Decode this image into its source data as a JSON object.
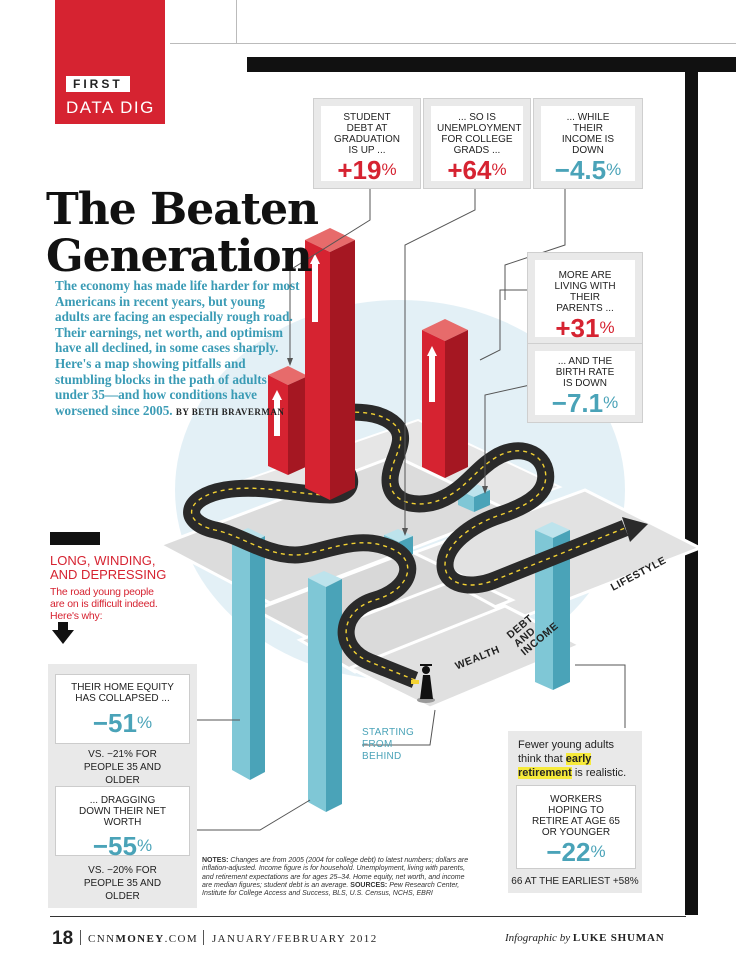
{
  "section": {
    "first": "FIRST",
    "data_dig": "DATA DIG"
  },
  "title": {
    "line1": "The Beaten",
    "line2": "Generation"
  },
  "intro": {
    "text": "The economy has made life harder for most Americans in recent years, but young adults are facing an especially rough road. Their earnings, net worth, and optimism have all declined, in some cases sharply. Here's a map showing pitfalls and stumbling blocks in the path of adults under 35—and how conditions have worsened since 2005.",
    "byline": "BY BETH BRAVERMAN"
  },
  "stats_top": [
    {
      "caption": "STUDENT DEBT AT GRADUATION IS UP ...",
      "value": "+19",
      "unit": "%",
      "color": "#d62331"
    },
    {
      "caption": "... SO IS UNEMPLOYMENT FOR COLLEGE GRADS ...",
      "value": "+64",
      "unit": "%",
      "color": "#d62331"
    },
    {
      "caption": "... WHILE THEIR INCOME IS DOWN",
      "value": "−4.5",
      "unit": "%",
      "color": "#4aa3b8"
    }
  ],
  "stats_right": [
    {
      "caption": "MORE ARE LIVING WITH THEIR PARENTS ...",
      "value": "+31",
      "unit": "%",
      "color": "#d62331"
    },
    {
      "caption": "... AND THE BIRTH RATE IS DOWN",
      "value": "−7.1",
      "unit": "%",
      "color": "#4aa3b8"
    }
  ],
  "left_panel": {
    "heading": "LONG, WINDING, AND DEPRESSING",
    "sub": "The road young people are on is difficult indeed. Here's why:",
    "items": [
      {
        "caption": "THEIR HOME EQUITY HAS COLLAPSED ...",
        "value": "−51",
        "unit": "%",
        "foot": "VS. −21% FOR PEOPLE 35 AND OLDER"
      },
      {
        "caption": "... DRAGGING DOWN THEIR NET WORTH",
        "value": "−55",
        "unit": "%",
        "foot": "VS. −20% FOR PEOPLE 35 AND OLDER"
      }
    ]
  },
  "retirement": {
    "text_before": "Fewer young adults think that",
    "highlight": "early retirement",
    "text_after": "is realistic.",
    "caption": "WORKERS HOPING TO RETIRE AT AGE 65 OR YOUNGER",
    "value": "−22",
    "unit": "%",
    "foot": "66 AT THE EARLIEST +58%"
  },
  "map_labels": {
    "wealth": "WEALTH",
    "debt": "DEBT AND INCOME",
    "lifestyle": "LIFESTYLE",
    "starting": "STARTING FROM BEHIND"
  },
  "notes": {
    "label": "NOTES:",
    "text1": "Changes are from 2005 (2004 for college debt) to latest numbers; dollars are inflation-adjusted. Income figure is for household. Unemployment, living with parents, and retirement expectations are for ages 25–34. Home equity, net worth, and income are median figures; student debt is an average.",
    "sources_label": "SOURCES:",
    "text2": "Pew Research Center, Institute for College Access and Success, BLS, U.S. Census, NCHS, EBRI"
  },
  "footer": {
    "page": "18",
    "site_pre": "CNN",
    "site_bold": "MONEY",
    "site_post": ".COM",
    "date": "JANUARY/FEBRUARY 2012",
    "credit_pre": "Infographic by",
    "credit_name": "LUKE SHUMAN"
  },
  "colors": {
    "red": "#d62331",
    "teal": "#4aa3b8",
    "black": "#111111",
    "gray_panel": "#e9e9e9",
    "highlight": "#f6ea3b"
  }
}
